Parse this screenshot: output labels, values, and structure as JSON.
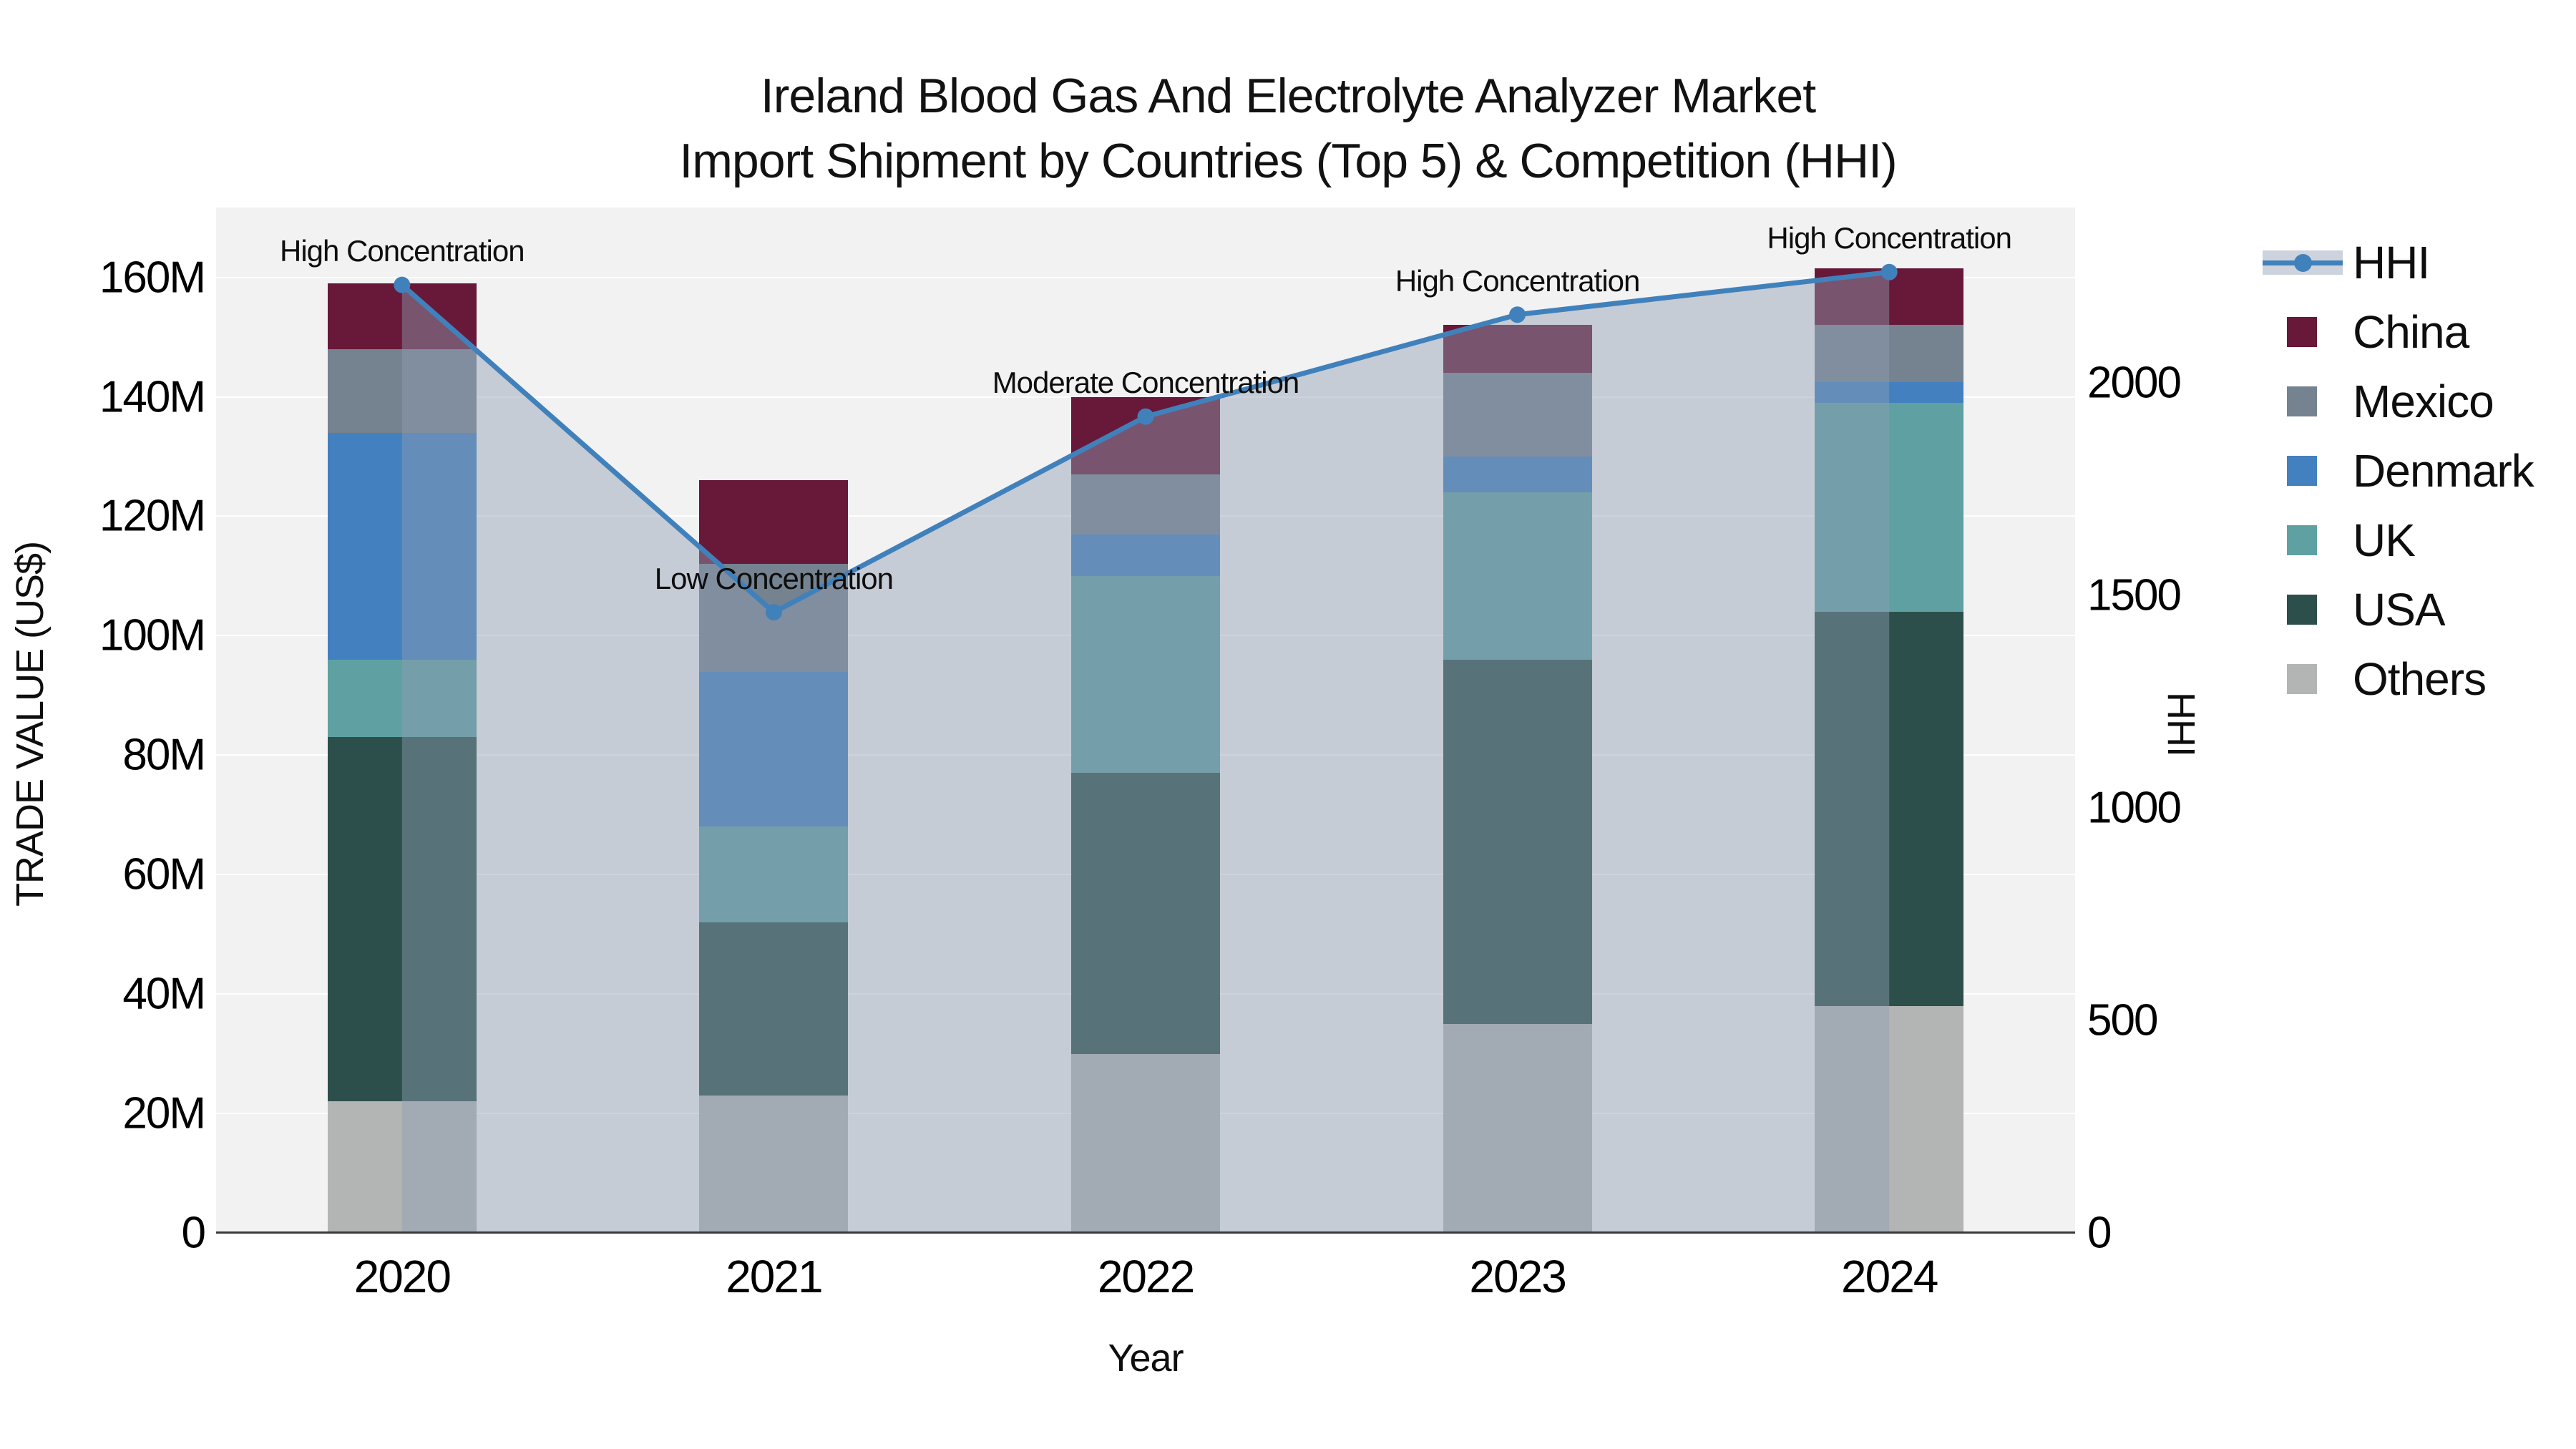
{
  "title": {
    "line1": "Ireland Blood Gas And Electrolyte Analyzer Market",
    "line2": "Import Shipment by Countries (Top 5) & Competition (HHI)"
  },
  "axes": {
    "left": {
      "title": "TRADE VALUE (US$)",
      "ticks": [
        {
          "v": 0,
          "label": "0"
        },
        {
          "v": 20,
          "label": "20M"
        },
        {
          "v": 40,
          "label": "40M"
        },
        {
          "v": 60,
          "label": "60M"
        },
        {
          "v": 80,
          "label": "80M"
        },
        {
          "v": 100,
          "label": "100M"
        },
        {
          "v": 120,
          "label": "120M"
        },
        {
          "v": 140,
          "label": "140M"
        },
        {
          "v": 160,
          "label": "160M"
        }
      ]
    },
    "right": {
      "title": "HHI",
      "ticks": [
        {
          "v": 0,
          "label": "0"
        },
        {
          "v": 500,
          "label": "500"
        },
        {
          "v": 1000,
          "label": "1000"
        },
        {
          "v": 1500,
          "label": "1500"
        },
        {
          "v": 2000,
          "label": "2000"
        }
      ]
    },
    "x": {
      "title": "Year"
    }
  },
  "legend": {
    "items": [
      {
        "label": "HHI",
        "type": "line",
        "color": "#4181bb"
      },
      {
        "label": "China",
        "type": "swatch",
        "color": "#681838"
      },
      {
        "label": "Mexico",
        "type": "swatch",
        "color": "#75828f"
      },
      {
        "label": "Denmark",
        "type": "swatch",
        "color": "#4380c0"
      },
      {
        "label": "UK",
        "type": "swatch",
        "color": "#5fa1a2"
      },
      {
        "label": "USA",
        "type": "swatch",
        "color": "#2d4f4b"
      },
      {
        "label": "Others",
        "type": "swatch",
        "color": "#b2b5b3"
      }
    ]
  },
  "chart_data": {
    "type": "bar+line",
    "title": "Ireland Blood Gas And Electrolyte Analyzer Market Import Shipment by Countries (Top 5) & Competition (HHI)",
    "categories": [
      "2020",
      "2021",
      "2022",
      "2023",
      "2024"
    ],
    "stack_note": "series listed bottom-to-top of stack; values are trade value in millions US$ read from left axis",
    "series": [
      {
        "name": "Others",
        "color": "#b2b5b3",
        "values": [
          22,
          23,
          30,
          35,
          38
        ]
      },
      {
        "name": "USA",
        "color": "#2d4f4b",
        "values": [
          61,
          29,
          47,
          61,
          66
        ]
      },
      {
        "name": "UK",
        "color": "#5fa1a2",
        "values": [
          13,
          16,
          33,
          28,
          35
        ]
      },
      {
        "name": "Denmark",
        "color": "#4380c0",
        "values": [
          38,
          26,
          7,
          6,
          3.5
        ]
      },
      {
        "name": "Mexico",
        "color": "#75828f",
        "values": [
          14,
          18,
          10,
          14,
          9.5
        ]
      },
      {
        "name": "China",
        "color": "#681838",
        "values": [
          11,
          14,
          13,
          8,
          9.5
        ]
      }
    ],
    "bar_totals": [
      159,
      126,
      140,
      152,
      161.5
    ],
    "line_series": {
      "name": "HHI",
      "axis": "right",
      "color": "#4181bb",
      "area_fill": "rgba(142,157,179,0.45)",
      "values": [
        2230,
        1460,
        1920,
        2160,
        2260
      ]
    },
    "annotations": [
      {
        "year": "2020",
        "text": "High Concentration"
      },
      {
        "year": "2021",
        "text": "Low Concentration"
      },
      {
        "year": "2022",
        "text": "Moderate Concentration"
      },
      {
        "year": "2023",
        "text": "High Concentration"
      },
      {
        "year": "2024",
        "text": "High Concentration"
      }
    ],
    "xlabel": "Year",
    "ylabel_left": "TRADE VALUE (US$)",
    "ylabel_right": "HHI",
    "ylim_left": [
      0,
      171.7
    ],
    "ylim_right": [
      0,
      2412
    ],
    "grid": "horizontal",
    "legend_position": "right"
  },
  "colors": {
    "plot_bg": "#f2f2f3",
    "gridline": "#ffffff",
    "axis_line": "#3a3a3a",
    "text": "#111111"
  }
}
